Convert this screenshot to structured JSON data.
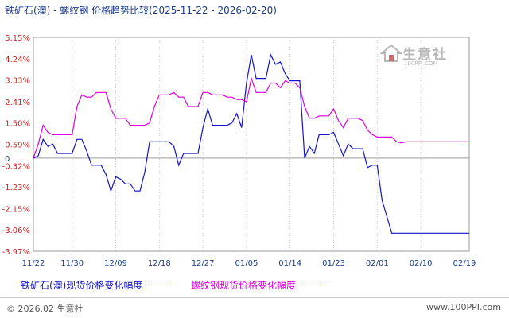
{
  "title": "铁矿石(澳) - 螺纹钢 价格趋势比较(2025-11-22 - 2026-02-20)",
  "watermark": {
    "brand": "生意社",
    "url": "100PPI.COM"
  },
  "footer": {
    "copyright": "© 2026.02 生意社",
    "site": "www.100PPI.com"
  },
  "colors": {
    "series1": "#1414cc",
    "series2": "#dd00dd",
    "zero_line": "#999999"
  },
  "chart_data": {
    "type": "line",
    "title": "铁矿石(澳) - 螺纹钢 价格趋势比较(2025-11-22 - 2026-02-20)",
    "x_ticks": [
      "11/22",
      "11/30",
      "12/09",
      "12/18",
      "12/27",
      "01/05",
      "01/14",
      "01/23",
      "02/01",
      "02/10",
      "02/19"
    ],
    "y_ticks": [
      "5.15%",
      "4.24%",
      "3.33%",
      "2.41%",
      "1.50%",
      "0.59%",
      "-0.32%",
      "-1.23%",
      "-2.15%",
      "-3.06%",
      "-3.97%"
    ],
    "ylim": [
      -3.97,
      5.15
    ],
    "zero_label": "0",
    "grid": "vertical dotted",
    "legend_position": "bottom",
    "series": [
      {
        "name": "铁矿石(澳)现货价格变化幅度",
        "x": [
          "11/22",
          "11/23",
          "11/24",
          "11/25",
          "11/26",
          "11/27",
          "11/28",
          "11/29",
          "11/30",
          "12/01",
          "12/02",
          "12/03",
          "12/04",
          "12/05",
          "12/06",
          "12/07",
          "12/08",
          "12/09",
          "12/10",
          "12/11",
          "12/12",
          "12/13",
          "12/14",
          "12/15",
          "12/16",
          "12/17",
          "12/18",
          "12/19",
          "12/20",
          "12/21",
          "12/22",
          "12/23",
          "12/24",
          "12/25",
          "12/26",
          "12/27",
          "12/28",
          "12/29",
          "12/30",
          "12/31",
          "01/01",
          "01/02",
          "01/03",
          "01/04",
          "01/05",
          "01/06",
          "01/07",
          "01/08",
          "01/09",
          "01/10",
          "01/11",
          "01/12",
          "01/13",
          "01/14",
          "01/15",
          "01/16",
          "01/17",
          "01/18",
          "01/19",
          "01/20",
          "01/21",
          "01/22",
          "01/23",
          "01/24",
          "01/25",
          "01/26",
          "01/27",
          "01/28",
          "01/29",
          "01/30",
          "01/31",
          "02/01",
          "02/02",
          "02/03",
          "02/04",
          "02/05",
          "02/06",
          "02/07",
          "02/08",
          "02/09",
          "02/10",
          "02/11",
          "02/12",
          "02/13",
          "02/14",
          "02/15",
          "02/16",
          "02/17",
          "02/18",
          "02/19",
          "02/20"
        ],
        "values": [
          0,
          0.1,
          0.8,
          0.5,
          0.6,
          0.2,
          0.2,
          0.2,
          0.2,
          0.8,
          0.8,
          0.3,
          -0.3,
          -0.3,
          -0.3,
          -0.7,
          -1.4,
          -0.8,
          -0.9,
          -1.1,
          -1.1,
          -1.4,
          -1.4,
          -0.6,
          0.7,
          0.7,
          0.7,
          0.7,
          0.7,
          0.5,
          -0.3,
          0.2,
          0.2,
          0.2,
          0.2,
          1.3,
          2.1,
          1.4,
          1.4,
          1.4,
          1.4,
          1.5,
          1.9,
          1.3,
          3.2,
          4.4,
          3.4,
          3.4,
          3.4,
          4.4,
          4.0,
          4.1,
          3.6,
          3.3,
          3.3,
          3.3,
          0.0,
          0.5,
          0.2,
          1.0,
          1.0,
          1.0,
          1.1,
          0.6,
          0.1,
          0.6,
          0.4,
          0.4,
          0.4,
          -0.4,
          -0.3,
          -0.3,
          -1.8,
          -2.5,
          -3.2,
          -3.2,
          -3.2,
          -3.2,
          -3.2,
          -3.2,
          -3.2,
          -3.2,
          -3.2,
          -3.2,
          -3.2,
          -3.2,
          -3.2,
          -3.2,
          -3.2,
          -3.2,
          -3.2
        ]
      },
      {
        "name": "螺纹钢现货价格变化幅度",
        "x": [
          "11/22",
          "11/23",
          "11/24",
          "11/25",
          "11/26",
          "11/27",
          "11/28",
          "11/29",
          "11/30",
          "12/01",
          "12/02",
          "12/03",
          "12/04",
          "12/05",
          "12/06",
          "12/07",
          "12/08",
          "12/09",
          "12/10",
          "12/11",
          "12/12",
          "12/13",
          "12/14",
          "12/15",
          "12/16",
          "12/17",
          "12/18",
          "12/19",
          "12/20",
          "12/21",
          "12/22",
          "12/23",
          "12/24",
          "12/25",
          "12/26",
          "12/27",
          "12/28",
          "12/29",
          "12/30",
          "12/31",
          "01/01",
          "01/02",
          "01/03",
          "01/04",
          "01/05",
          "01/06",
          "01/07",
          "01/08",
          "01/09",
          "01/10",
          "01/11",
          "01/12",
          "01/13",
          "01/14",
          "01/15",
          "01/16",
          "01/17",
          "01/18",
          "01/19",
          "01/20",
          "01/21",
          "01/22",
          "01/23",
          "01/24",
          "01/25",
          "01/26",
          "01/27",
          "01/28",
          "01/29",
          "01/30",
          "01/31",
          "02/01",
          "02/02",
          "02/03",
          "02/04",
          "02/05",
          "02/06",
          "02/07",
          "02/08",
          "02/09",
          "02/10",
          "02/11",
          "02/12",
          "02/13",
          "02/14",
          "02/15",
          "02/16",
          "02/17",
          "02/18",
          "02/19",
          "02/20"
        ],
        "values": [
          0,
          0.6,
          1.4,
          1.1,
          1.0,
          1.0,
          1.0,
          1.0,
          1.0,
          2.2,
          2.7,
          2.6,
          2.6,
          2.8,
          2.8,
          2.8,
          2.1,
          1.7,
          1.7,
          1.7,
          1.4,
          1.4,
          1.4,
          1.4,
          1.5,
          2.2,
          2.7,
          2.7,
          2.7,
          2.8,
          2.6,
          2.6,
          2.2,
          2.2,
          2.2,
          2.8,
          2.8,
          2.7,
          2.7,
          2.7,
          2.6,
          2.6,
          2.5,
          2.5,
          2.4,
          3.4,
          2.8,
          2.8,
          2.8,
          3.2,
          3.2,
          3.0,
          3.3,
          3.2,
          3.2,
          3.0,
          2.2,
          1.7,
          1.7,
          1.8,
          1.8,
          1.8,
          2.1,
          1.6,
          1.3,
          1.7,
          1.7,
          1.7,
          1.6,
          1.2,
          1.0,
          0.9,
          0.9,
          0.9,
          0.9,
          0.7,
          0.65,
          0.7,
          0.7,
          0.7,
          0.7,
          0.7,
          0.7,
          0.7,
          0.7,
          0.7,
          0.7,
          0.7,
          0.7,
          0.7,
          0.7
        ]
      }
    ]
  }
}
